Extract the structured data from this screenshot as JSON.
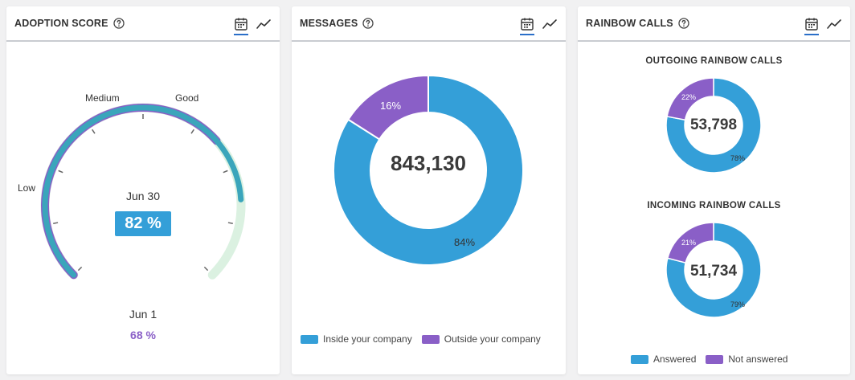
{
  "colors": {
    "blue": "#349fd8",
    "purple": "#8a5fc7",
    "teal": "#3aa5bb",
    "light_green": "#dbf1e1",
    "header_rule": "#c9ccd1",
    "accent": "#2a6fc9"
  },
  "adoption": {
    "title": "ADOPTION SCORE",
    "current": {
      "date": "Jun 30",
      "value_label": "82 %",
      "value": 82
    },
    "previous": {
      "date": "Jun 1",
      "value_label": "68 %",
      "value": 68
    },
    "levels": {
      "low": "Low",
      "medium": "Medium",
      "good": "Good"
    }
  },
  "messages": {
    "title": "MESSAGES",
    "total": "843,130",
    "slices": [
      {
        "name": "Inside your company",
        "value": 84,
        "label": "84%"
      },
      {
        "name": "Outside your company",
        "value": 16,
        "label": "16%"
      }
    ]
  },
  "calls": {
    "title": "RAINBOW CALLS",
    "outgoing": {
      "title": "OUTGOING RAINBOW CALLS",
      "total": "53,798",
      "answered": {
        "value": 78,
        "label": "78%"
      },
      "not_answered": {
        "value": 22,
        "label": "22%"
      }
    },
    "incoming": {
      "title": "INCOMING RAINBOW CALLS",
      "total": "51,734",
      "answered": {
        "value": 79,
        "label": "79%"
      },
      "not_answered": {
        "value": 21,
        "label": "21%"
      }
    },
    "legend": {
      "answered": "Answered",
      "not_answered": "Not answered"
    }
  },
  "icons": {
    "help": "help-circle-icon",
    "calendar": "calendar-icon",
    "trend": "trend-line-icon"
  }
}
